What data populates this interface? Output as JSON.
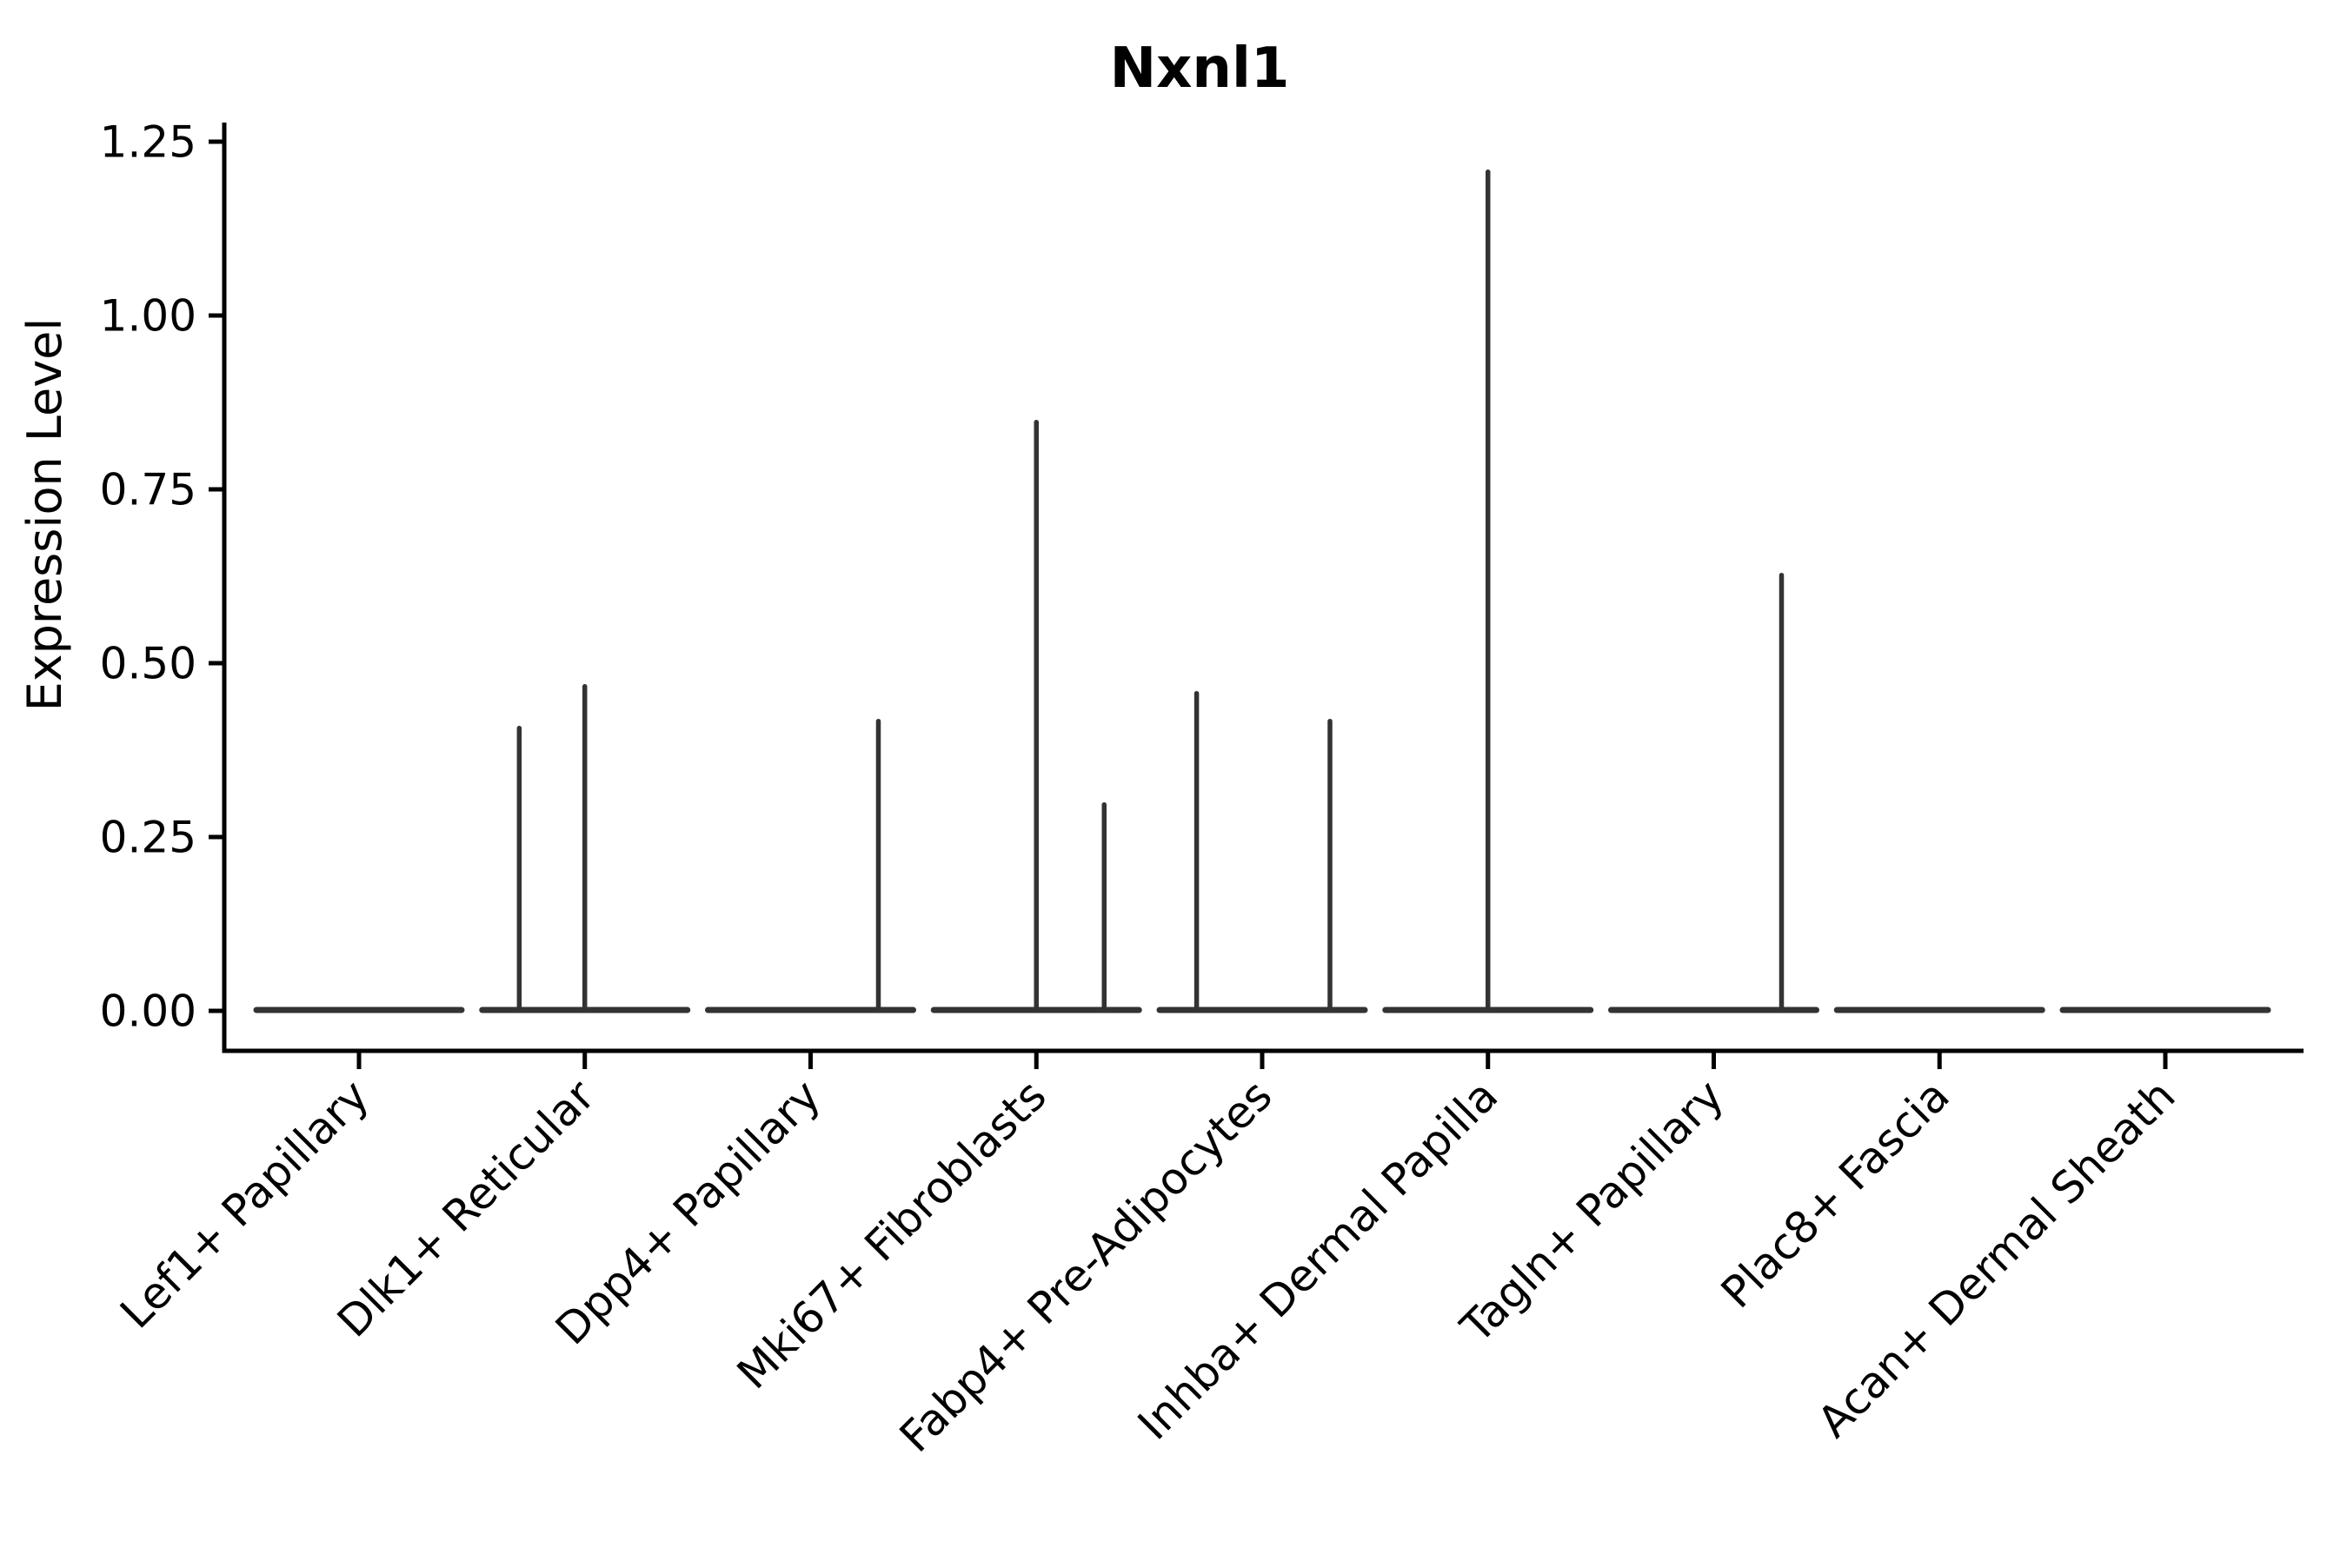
{
  "figure": {
    "background": "#ffffff",
    "axis_color": "#000000",
    "violin_color": "#333333"
  },
  "chart_data": {
    "type": "violin",
    "title": "Nxnl1",
    "xlabel": "",
    "ylabel": "Expression Level",
    "ylim": [
      0,
      1.25
    ],
    "yticks": [
      "0.00",
      "0.25",
      "0.50",
      "0.75",
      "1.00",
      "1.25"
    ],
    "grid": false,
    "legend": false,
    "x_tick_rotation_deg": 45,
    "categories": [
      "Lef1+ Papillary",
      "Dlk1+ Reticular",
      "Dpp4+ Papillary",
      "Mki67+ Fibroblasts",
      "Fabp4+ Pre-Adipocytes",
      "Inhba+ Dermal Papilla",
      "Tagln+ Papillary",
      "Plac8+ Fascia",
      "Acan+ Dermal Sheath"
    ],
    "violins": [
      {
        "category": "Lef1+ Papillary",
        "baseline_value": 0,
        "points": []
      },
      {
        "category": "Dlk1+ Reticular",
        "baseline_value": 0,
        "points": [
          {
            "value": 0.41,
            "jitter": -0.29
          },
          {
            "value": 0.47,
            "jitter": 0.0
          }
        ]
      },
      {
        "category": "Dpp4+ Papillary",
        "baseline_value": 0,
        "points": [
          {
            "value": 0.42,
            "jitter": 0.3
          }
        ]
      },
      {
        "category": "Mki67+ Fibroblasts",
        "baseline_value": 0,
        "points": [
          {
            "value": 0.85,
            "jitter": 0.0
          },
          {
            "value": 0.3,
            "jitter": 0.3
          }
        ]
      },
      {
        "category": "Fabp4+ Pre-Adipocytes",
        "baseline_value": 0,
        "points": [
          {
            "value": 0.46,
            "jitter": -0.29
          },
          {
            "value": 0.42,
            "jitter": 0.3
          }
        ]
      },
      {
        "category": "Inhba+ Dermal Papilla",
        "baseline_value": 0,
        "points": [
          {
            "value": 1.21,
            "jitter": 0.0
          }
        ]
      },
      {
        "category": "Tagln+ Papillary",
        "baseline_value": 0,
        "points": [
          {
            "value": 0.63,
            "jitter": 0.3
          }
        ]
      },
      {
        "category": "Plac8+ Fascia",
        "baseline_value": 0,
        "points": []
      },
      {
        "category": "Acan+ Dermal Sheath",
        "baseline_value": 0,
        "points": []
      }
    ]
  }
}
